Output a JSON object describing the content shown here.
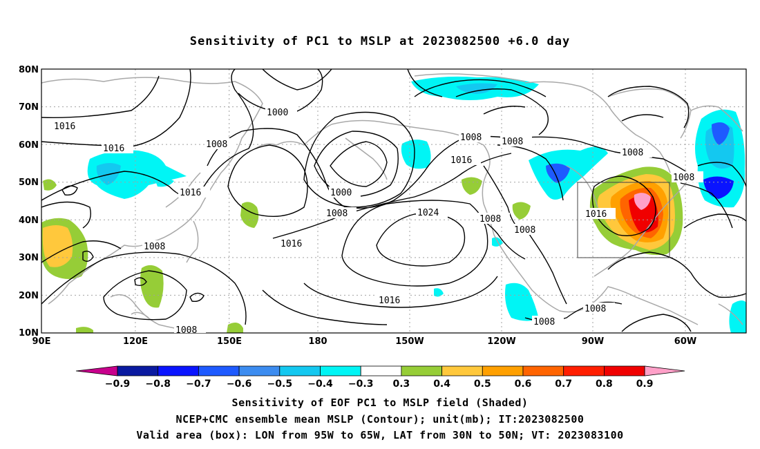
{
  "title": "Sensitivity of PC1 to MSLP at 2023082500 +6.0 day",
  "map": {
    "lat_ticks": [
      "80N",
      "70N",
      "60N",
      "50N",
      "40N",
      "30N",
      "20N",
      "10N"
    ],
    "lon_ticks": [
      "90E",
      "120E",
      "150E",
      "180",
      "150W",
      "120W",
      "90W",
      "60W"
    ],
    "gridlines": true,
    "contour_labels": [
      "1016",
      "1000",
      "1008",
      "1016",
      "1008",
      "1016",
      "1000",
      "1008",
      "1016",
      "1024",
      "1008",
      "1008",
      "1016",
      "1008",
      "1008",
      "1008",
      "1016",
      "1008",
      "1008",
      "1008",
      "1016",
      "1008"
    ],
    "valid_box": {
      "lon_range": [
        "95W",
        "65W"
      ],
      "lat_range": [
        "30N",
        "50N"
      ]
    }
  },
  "colorbar": {
    "labels": [
      "−0.9",
      "−0.8",
      "−0.7",
      "−0.6",
      "−0.5",
      "−0.4",
      "−0.3",
      "0.3",
      "0.4",
      "0.5",
      "0.6",
      "0.7",
      "0.8",
      "0.9"
    ],
    "colors": [
      "#c8008c",
      "#0a1aa0",
      "#0a14ff",
      "#1e5aff",
      "#3c8cf0",
      "#14c8f0",
      "#00f5f5",
      "#ffffff",
      "#96cd37",
      "#ffc83c",
      "#ffa000",
      "#ff6400",
      "#ff1e00",
      "#f00000",
      "#ffa0c8"
    ]
  },
  "captions": [
    "Sensitivity of EOF PC1 to MSLP field (Shaded)",
    "NCEP+CMC ensemble mean MSLP (Contour); unit(mb); IT:2023082500",
    "Valid area (box): LON from 95W to 65W, LAT from 30N to 50N; VT: 2023083100"
  ]
}
